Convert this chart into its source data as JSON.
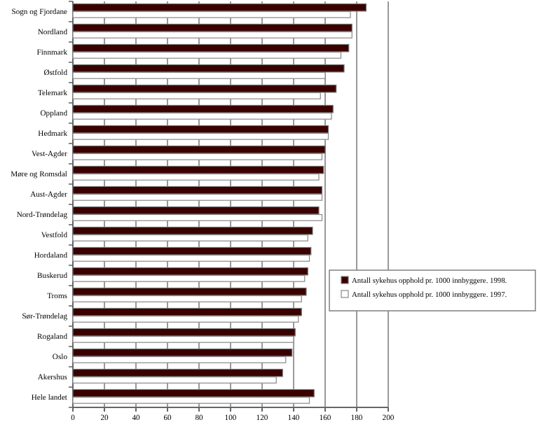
{
  "chart_data": {
    "type": "bar",
    "orientation": "horizontal",
    "categories": [
      "Sogn og Fjordane",
      "Nordland",
      "Finnmark",
      "Østfold",
      "Telemark",
      "Oppland",
      "Hedmark",
      "Vest-Agder",
      "Møre og Romsdal",
      "Aust-Agder",
      "Nord-Trøndelag",
      "Vestfold",
      "Hordaland",
      "Buskerud",
      "Troms",
      "Sør-Trøndelag",
      "Rogaland",
      "Oslo",
      "Akershus",
      "Hele landet"
    ],
    "series": [
      {
        "name": "Antall sykehus opphold pr. 1000 innbyggere. 1998.",
        "color": "#3a0000",
        "values": [
          186,
          177,
          175,
          172,
          167,
          165,
          162,
          160,
          159,
          158,
          156,
          152,
          151,
          149,
          148,
          145,
          141,
          139,
          133,
          153
        ]
      },
      {
        "name": "Antall sykehus opphold pr. 1000 innbyggere. 1997.",
        "color": "#ffffff",
        "values": [
          176,
          177,
          170,
          160,
          157,
          164,
          162,
          158,
          156,
          158,
          158,
          149,
          150,
          147,
          145,
          143,
          140,
          135,
          129,
          150
        ]
      }
    ],
    "xlim": [
      0,
      200
    ],
    "xticks": [
      0,
      20,
      40,
      60,
      80,
      100,
      120,
      140,
      160,
      180,
      200
    ],
    "grid": "x",
    "legend": "right"
  }
}
